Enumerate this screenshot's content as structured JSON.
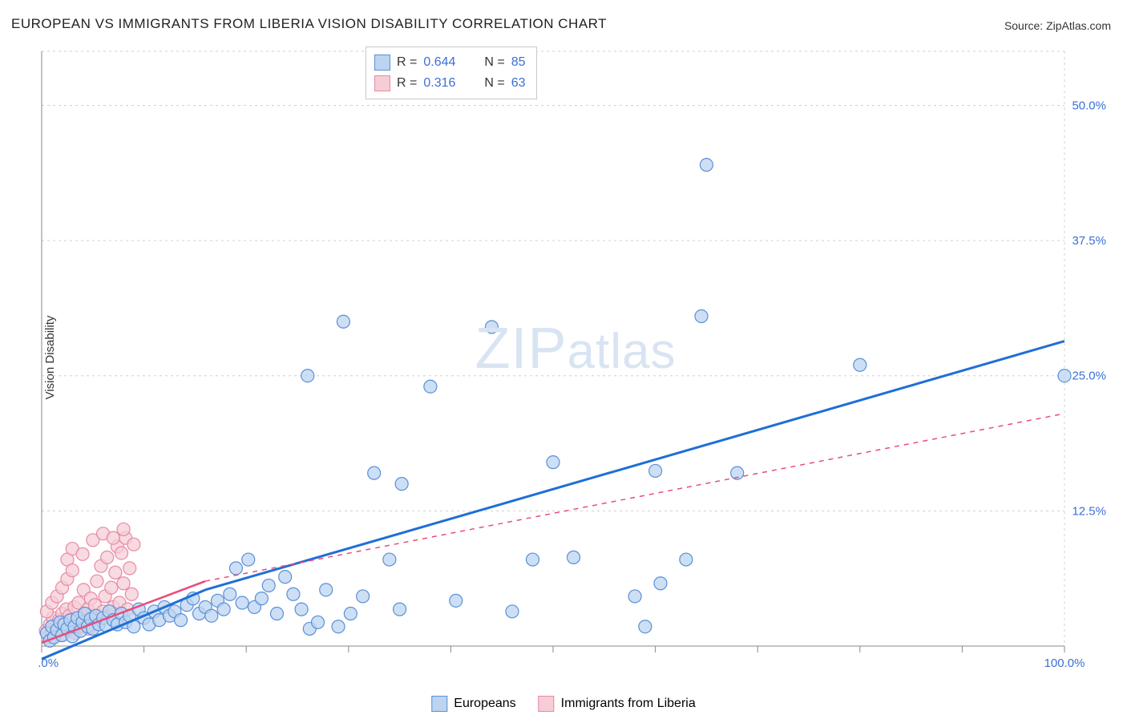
{
  "title": "EUROPEAN VS IMMIGRANTS FROM LIBERIA VISION DISABILITY CORRELATION CHART",
  "source_prefix": "Source: ",
  "source": "ZipAtlas.com",
  "y_axis_label": "Vision Disability",
  "watermark": "ZIPatlas",
  "chart": {
    "type": "scatter",
    "background_color": "#ffffff",
    "grid_color": "#d0d0d0",
    "axis_color": "#888888",
    "xlim": [
      0,
      100
    ],
    "ylim": [
      0,
      55
    ],
    "x_ticks": [
      0,
      10,
      20,
      30,
      40,
      50,
      60,
      70,
      80,
      90,
      100
    ],
    "x_tick_labels": {
      "0": "0.0%",
      "100": "100.0%"
    },
    "y_ticks": [
      12.5,
      25.0,
      37.5,
      50.0
    ],
    "y_tick_labels": [
      "12.5%",
      "25.0%",
      "37.5%",
      "50.0%"
    ],
    "y_grid_lines": [
      0,
      12.5,
      25.0,
      37.5,
      50.0,
      55
    ],
    "marker_radius": 8,
    "marker_stroke_width": 1.2,
    "series": [
      {
        "name": "Europeans",
        "fill_color": "#bcd4f0",
        "stroke_color": "#5a8fd8",
        "trend_color": "#1f6fd6",
        "trend_width": 3,
        "trend_dash": "none",
        "trend_segments": [
          {
            "x1": 0,
            "y1": -1.2,
            "x2": 16,
            "y2": 5.2
          },
          {
            "x1": 16,
            "y1": 5.2,
            "x2": 100,
            "y2": 28.2
          }
        ],
        "r_value": "0.644",
        "n_value": "85",
        "points": [
          [
            0.5,
            1.2
          ],
          [
            0.8,
            0.5
          ],
          [
            1.0,
            1.8
          ],
          [
            1.2,
            0.8
          ],
          [
            1.5,
            1.5
          ],
          [
            1.8,
            2.2
          ],
          [
            2.0,
            1.0
          ],
          [
            2.2,
            2.0
          ],
          [
            2.5,
            1.6
          ],
          [
            2.8,
            2.4
          ],
          [
            3.0,
            0.9
          ],
          [
            3.2,
            1.8
          ],
          [
            3.5,
            2.6
          ],
          [
            3.8,
            1.4
          ],
          [
            4.0,
            2.2
          ],
          [
            4.2,
            3.0
          ],
          [
            4.5,
            1.8
          ],
          [
            4.8,
            2.5
          ],
          [
            5.0,
            1.6
          ],
          [
            5.3,
            2.8
          ],
          [
            5.6,
            2.0
          ],
          [
            6.0,
            2.6
          ],
          [
            6.3,
            1.9
          ],
          [
            6.6,
            3.2
          ],
          [
            7.0,
            2.4
          ],
          [
            7.4,
            2.0
          ],
          [
            7.8,
            3.0
          ],
          [
            8.2,
            2.2
          ],
          [
            8.6,
            2.8
          ],
          [
            9.0,
            1.8
          ],
          [
            9.5,
            3.4
          ],
          [
            10.0,
            2.6
          ],
          [
            10.5,
            2.0
          ],
          [
            11.0,
            3.2
          ],
          [
            11.5,
            2.4
          ],
          [
            12.0,
            3.6
          ],
          [
            12.5,
            2.8
          ],
          [
            13.0,
            3.2
          ],
          [
            13.6,
            2.4
          ],
          [
            14.2,
            3.8
          ],
          [
            14.8,
            4.4
          ],
          [
            15.4,
            3.0
          ],
          [
            16.0,
            3.6
          ],
          [
            16.6,
            2.8
          ],
          [
            17.2,
            4.2
          ],
          [
            17.8,
            3.4
          ],
          [
            18.4,
            4.8
          ],
          [
            19.0,
            7.2
          ],
          [
            19.6,
            4.0
          ],
          [
            20.2,
            8.0
          ],
          [
            20.8,
            3.6
          ],
          [
            21.5,
            4.4
          ],
          [
            22.2,
            5.6
          ],
          [
            23.0,
            3.0
          ],
          [
            23.8,
            6.4
          ],
          [
            24.6,
            4.8
          ],
          [
            25.4,
            3.4
          ],
          [
            26.2,
            1.6
          ],
          [
            27.0,
            2.2
          ],
          [
            27.8,
            5.2
          ],
          [
            29.0,
            1.8
          ],
          [
            30.2,
            3.0
          ],
          [
            31.4,
            4.6
          ],
          [
            26.0,
            25.0
          ],
          [
            29.5,
            30.0
          ],
          [
            32.5,
            16.0
          ],
          [
            35.2,
            15.0
          ],
          [
            34.0,
            8.0
          ],
          [
            35.0,
            3.4
          ],
          [
            38.0,
            24.0
          ],
          [
            40.5,
            4.2
          ],
          [
            44.0,
            29.5
          ],
          [
            46.0,
            3.2
          ],
          [
            48.0,
            8.0
          ],
          [
            50.0,
            17.0
          ],
          [
            52.0,
            8.2
          ],
          [
            58.0,
            4.6
          ],
          [
            59.0,
            1.8
          ],
          [
            60.0,
            16.2
          ],
          [
            60.5,
            5.8
          ],
          [
            63.0,
            8.0
          ],
          [
            64.5,
            30.5
          ],
          [
            65.0,
            44.5
          ],
          [
            68.0,
            16.0
          ],
          [
            80.0,
            26.0
          ],
          [
            100.0,
            25.0
          ]
        ]
      },
      {
        "name": "Immigrants from Liberia",
        "fill_color": "#f6cdd7",
        "stroke_color": "#e68aa5",
        "trend_color": "#e84d7a",
        "trend_width": 2.5,
        "trend_dash": "none",
        "trend_dash_ext": "6,6",
        "trend_segments": [
          {
            "x1": 0,
            "y1": 0.3,
            "x2": 16,
            "y2": 6.0
          }
        ],
        "trend_ext_segments": [
          {
            "x1": 16,
            "y1": 6.0,
            "x2": 100,
            "y2": 21.5
          }
        ],
        "r_value": "0.316",
        "n_value": "63",
        "points": [
          [
            0.4,
            1.4
          ],
          [
            0.6,
            0.8
          ],
          [
            0.8,
            2.0
          ],
          [
            1.0,
            1.2
          ],
          [
            1.1,
            2.6
          ],
          [
            1.3,
            0.9
          ],
          [
            1.4,
            1.8
          ],
          [
            1.6,
            1.4
          ],
          [
            1.7,
            2.4
          ],
          [
            1.9,
            1.0
          ],
          [
            2.0,
            3.0
          ],
          [
            2.1,
            1.6
          ],
          [
            2.3,
            2.2
          ],
          [
            2.4,
            3.4
          ],
          [
            2.6,
            1.4
          ],
          [
            2.7,
            2.8
          ],
          [
            2.9,
            1.8
          ],
          [
            3.0,
            2.4
          ],
          [
            3.2,
            3.6
          ],
          [
            3.3,
            1.2
          ],
          [
            3.5,
            2.6
          ],
          [
            3.6,
            4.0
          ],
          [
            3.8,
            1.8
          ],
          [
            4.0,
            2.8
          ],
          [
            4.1,
            5.2
          ],
          [
            4.3,
            2.2
          ],
          [
            4.5,
            3.4
          ],
          [
            4.6,
            1.6
          ],
          [
            4.8,
            4.4
          ],
          [
            5.0,
            2.6
          ],
          [
            5.2,
            3.8
          ],
          [
            5.4,
            6.0
          ],
          [
            5.6,
            2.4
          ],
          [
            5.8,
            7.4
          ],
          [
            6.0,
            3.2
          ],
          [
            6.2,
            4.6
          ],
          [
            6.4,
            8.2
          ],
          [
            6.6,
            2.8
          ],
          [
            6.8,
            5.4
          ],
          [
            7.0,
            3.6
          ],
          [
            7.2,
            6.8
          ],
          [
            7.4,
            9.2
          ],
          [
            7.6,
            4.0
          ],
          [
            7.8,
            8.6
          ],
          [
            8.0,
            5.8
          ],
          [
            8.2,
            10.0
          ],
          [
            8.4,
            3.4
          ],
          [
            8.6,
            7.2
          ],
          [
            8.8,
            4.8
          ],
          [
            9.0,
            9.4
          ],
          [
            2.5,
            8.0
          ],
          [
            3.0,
            9.0
          ],
          [
            4.0,
            8.5
          ],
          [
            5.0,
            9.8
          ],
          [
            6.0,
            10.4
          ],
          [
            7.0,
            10.0
          ],
          [
            8.0,
            10.8
          ],
          [
            0.5,
            3.2
          ],
          [
            1.0,
            4.0
          ],
          [
            1.5,
            4.6
          ],
          [
            2.0,
            5.4
          ],
          [
            2.5,
            6.2
          ],
          [
            3.0,
            7.0
          ]
        ]
      }
    ],
    "stats_legend": {
      "r_label": "R =",
      "n_label": "N ="
    },
    "bottom_legend": {
      "series1_label": "Europeans",
      "series2_label": "Immigrants from Liberia"
    }
  }
}
